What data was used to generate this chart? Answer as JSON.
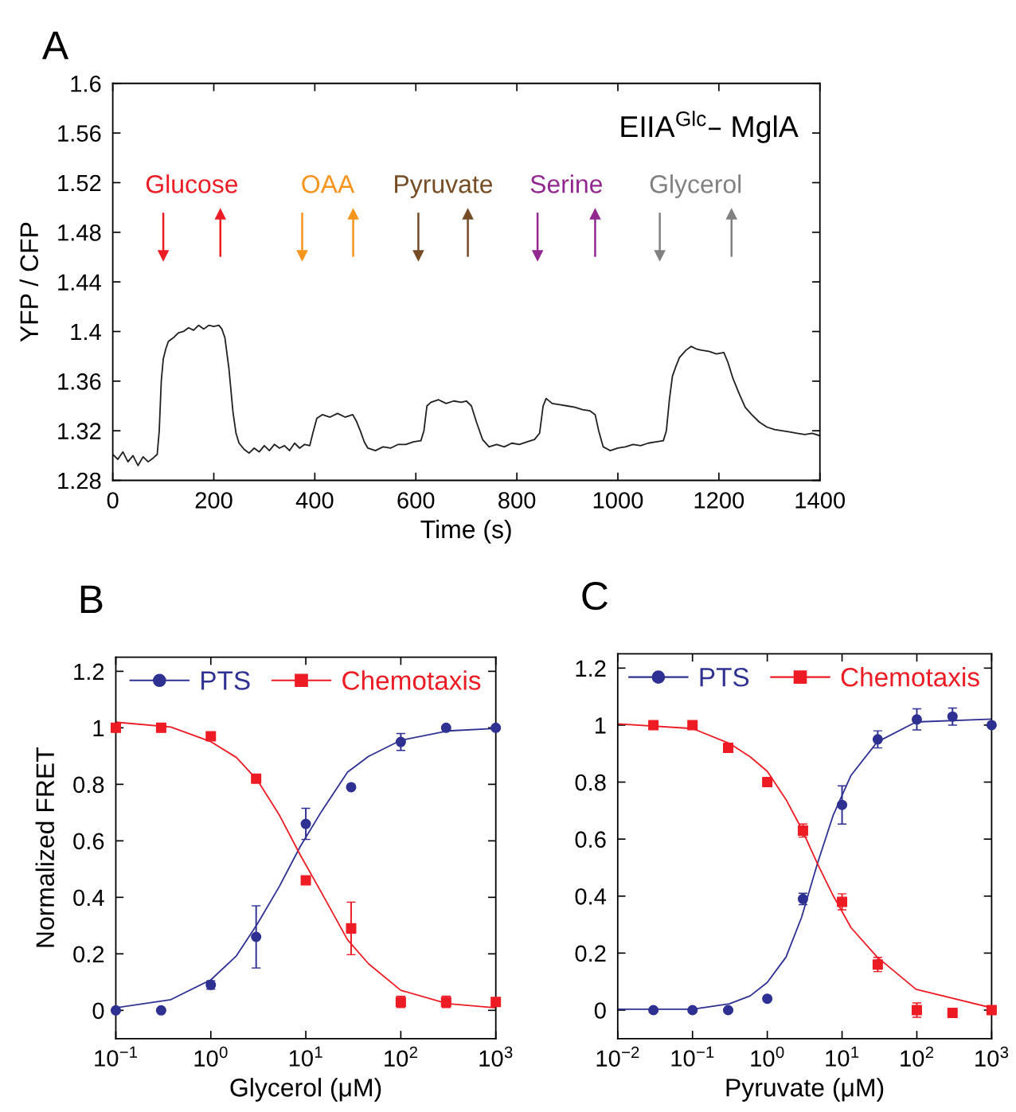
{
  "chart_data": [
    {
      "type": "line",
      "title": "A",
      "xlabel": "Time (s)",
      "ylabel": "YFP / CFP",
      "xlim": [
        0,
        1400
      ],
      "xticks": [
        0,
        200,
        400,
        600,
        800,
        1000,
        1200,
        1400
      ],
      "ylim": [
        1.28,
        1.6
      ],
      "yticks": [
        1.28,
        1.32,
        1.36,
        1.4,
        1.44,
        1.48,
        1.52,
        1.56,
        1.6
      ],
      "grid": false,
      "legend": false,
      "annotations": [
        "EIIA$^{Glc}$– MglA"
      ],
      "series": [
        {
          "color": "#231f20",
          "x": [
            0,
            10,
            20,
            30,
            40,
            50,
            60,
            70,
            80,
            88,
            92,
            96,
            100,
            105,
            110,
            120,
            130,
            140,
            150,
            160,
            170,
            180,
            190,
            200,
            210,
            216,
            222,
            230,
            238,
            244,
            250,
            260,
            270,
            280,
            290,
            300,
            310,
            320,
            330,
            340,
            350,
            360,
            370,
            380,
            390,
            396,
            404,
            415,
            430,
            445,
            460,
            475,
            482,
            490,
            498,
            505,
            520,
            535,
            550,
            565,
            580,
            595,
            610,
            616,
            622,
            630,
            645,
            660,
            675,
            690,
            700,
            710,
            720,
            732,
            745,
            760,
            775,
            790,
            805,
            820,
            835,
            845,
            852,
            858,
            870,
            885,
            900,
            915,
            930,
            945,
            955,
            962,
            971,
            985,
            1000,
            1015,
            1030,
            1045,
            1060,
            1075,
            1090,
            1096,
            1102,
            1108,
            1115,
            1122,
            1135,
            1145,
            1155,
            1165,
            1180,
            1195,
            1210,
            1218,
            1228,
            1240,
            1252,
            1265,
            1280,
            1295,
            1310,
            1325,
            1340,
            1355,
            1370,
            1385,
            1400
          ],
          "values": [
            1.301,
            1.297,
            1.303,
            1.295,
            1.3,
            1.292,
            1.299,
            1.295,
            1.298,
            1.301,
            1.32,
            1.36,
            1.378,
            1.386,
            1.392,
            1.395,
            1.399,
            1.4,
            1.403,
            1.401,
            1.405,
            1.402,
            1.405,
            1.404,
            1.405,
            1.402,
            1.395,
            1.37,
            1.335,
            1.318,
            1.31,
            1.305,
            1.302,
            1.306,
            1.303,
            1.308,
            1.304,
            1.309,
            1.306,
            1.308,
            1.304,
            1.31,
            1.306,
            1.309,
            1.308,
            1.318,
            1.33,
            1.333,
            1.331,
            1.334,
            1.331,
            1.333,
            1.328,
            1.32,
            1.311,
            1.306,
            1.304,
            1.307,
            1.306,
            1.309,
            1.309,
            1.311,
            1.312,
            1.32,
            1.34,
            1.343,
            1.345,
            1.342,
            1.344,
            1.343,
            1.344,
            1.34,
            1.327,
            1.313,
            1.307,
            1.309,
            1.307,
            1.31,
            1.309,
            1.311,
            1.313,
            1.318,
            1.34,
            1.346,
            1.342,
            1.341,
            1.34,
            1.339,
            1.337,
            1.336,
            1.333,
            1.32,
            1.307,
            1.304,
            1.306,
            1.307,
            1.309,
            1.308,
            1.31,
            1.311,
            1.312,
            1.32,
            1.345,
            1.364,
            1.372,
            1.379,
            1.385,
            1.388,
            1.386,
            1.385,
            1.384,
            1.382,
            1.383,
            1.375,
            1.362,
            1.35,
            1.339,
            1.333,
            1.327,
            1.323,
            1.321,
            1.32,
            1.319,
            1.318,
            1.317,
            1.318,
            1.316
          ]
        },
        {
          "type": "scatter",
          "marker": "triangle",
          "name": "Glucose",
          "color": "#ed1c24",
          "x": [
            100,
            213
          ],
          "values": [
            1.461,
            1.495
          ]
        },
        {
          "type": "scatter",
          "marker": "triangle",
          "name": "OAA",
          "color": "#f7941d",
          "x": [
            375,
            476
          ],
          "values": [
            1.461,
            1.495
          ]
        },
        {
          "type": "scatter",
          "marker": "triangle",
          "name": "Pyruvate",
          "color": "#754c24",
          "x": [
            605,
            703
          ],
          "values": [
            1.461,
            1.495
          ]
        },
        {
          "type": "scatter",
          "marker": "triangle",
          "name": "Serine",
          "color": "#92278f",
          "x": [
            841,
            955
          ],
          "values": [
            1.461,
            1.495
          ]
        },
        {
          "type": "scatter",
          "marker": "triangle",
          "name": "Glycerol",
          "color": "#808080",
          "x": [
            1083,
            1225
          ],
          "values": [
            1.461,
            1.495
          ]
        }
      ]
    },
    {
      "type": "scatter",
      "title": "B",
      "xlabel": "Glycerol (μM)",
      "ylabel": "Normalized FRET",
      "log": "x",
      "xlim": [
        0.1,
        1000
      ],
      "xticks": [
        {
          "value": 0.1,
          "label": "10$^{−1}$"
        },
        {
          "value": 1,
          "label": "10$^{0}$"
        },
        {
          "value": 10,
          "label": "10$^{1}$"
        },
        {
          "value": 100,
          "label": "10$^{2}$"
        },
        {
          "value": 1000,
          "label": "10$^{3}$"
        }
      ],
      "ylim": [
        -0.1,
        1.25
      ],
      "yticks": [
        0,
        0.2,
        0.4,
        0.6,
        0.8,
        1,
        1.2
      ],
      "grid": false,
      "legend": "top",
      "series": [
        {
          "name": "PTS",
          "color": "#2e3192",
          "marker": "circle",
          "x": [
            0.1,
            0.3,
            1,
            3,
            10,
            30,
            100,
            300,
            1000
          ],
          "values": [
            0.0,
            0.0,
            0.09,
            0.26,
            0.66,
            0.79,
            0.95,
            1.0,
            1.0
          ],
          "errors": [
            null,
            null,
            0.015,
            0.11,
            0.055,
            null,
            0.03,
            null,
            null
          ]
        },
        {
          "name": "Chemotaxis",
          "color": "#ed1c24",
          "marker": "square",
          "x": [
            0.1,
            0.3,
            1,
            3,
            10,
            30,
            100,
            300,
            1000
          ],
          "values": [
            1.0,
            1.0,
            0.97,
            0.82,
            0.46,
            0.29,
            0.03,
            0.03,
            0.03
          ],
          "errors": [
            null,
            null,
            null,
            null,
            null,
            0.093,
            0.02,
            0.02,
            null
          ]
        },
        {
          "type": "line",
          "color": "#2e3192",
          "x": [
            0.1,
            0.38,
            1,
            1.86,
            3.09,
            5.25,
            8.71,
            14.5,
            27.5,
            45.7,
            100,
            309,
            1000
          ],
          "values": [
            0.009,
            0.038,
            0.108,
            0.193,
            0.306,
            0.438,
            0.579,
            0.702,
            0.843,
            0.899,
            0.956,
            0.989,
            0.998
          ]
        },
        {
          "type": "line",
          "color": "#ed1c24",
          "x": [
            0.1,
            0.38,
            1,
            1.86,
            3.09,
            5.25,
            8.71,
            14.5,
            27.5,
            45.7,
            100,
            309,
            1000
          ],
          "values": [
            1.02,
            1.003,
            0.951,
            0.895,
            0.815,
            0.692,
            0.551,
            0.419,
            0.25,
            0.165,
            0.071,
            0.024,
            0.009
          ]
        }
      ]
    },
    {
      "type": "scatter",
      "title": "C",
      "xlabel": "Pyruvate (μM)",
      "log": "x",
      "xlim": [
        0.01,
        1000
      ],
      "xticks": [
        {
          "value": 0.01,
          "label": "10$^{−2}$"
        },
        {
          "value": 0.1,
          "label": "10$^{−1}$"
        },
        {
          "value": 1,
          "label": "10$^{0}$"
        },
        {
          "value": 10,
          "label": "10$^{1}$"
        },
        {
          "value": 100,
          "label": "10$^{2}$"
        },
        {
          "value": 1000,
          "label": "10$^{3}$"
        }
      ],
      "ylim": [
        -0.1,
        1.25
      ],
      "yticks": [
        0,
        0.2,
        0.4,
        0.6,
        0.8,
        1,
        1.2
      ],
      "grid": false,
      "legend": "top",
      "series": [
        {
          "name": "PTS",
          "color": "#2e3192",
          "marker": "circle",
          "x": [
            0.03,
            0.1,
            0.3,
            1,
            3,
            10,
            30,
            100,
            300,
            1000
          ],
          "values": [
            0.0,
            0.0,
            0.0,
            0.04,
            0.39,
            0.72,
            0.95,
            1.02,
            1.03,
            1.0
          ],
          "errors": [
            null,
            null,
            null,
            null,
            0.02,
            0.067,
            0.03,
            0.037,
            0.03,
            null
          ]
        },
        {
          "name": "Chemotaxis",
          "color": "#ed1c24",
          "marker": "square",
          "x": [
            0.03,
            0.1,
            0.3,
            1,
            3,
            10,
            30,
            100,
            300,
            1000
          ],
          "values": [
            1.0,
            1.0,
            0.92,
            0.8,
            0.63,
            0.38,
            0.16,
            0.0,
            -0.01,
            0.0
          ],
          "errors": [
            null,
            null,
            null,
            null,
            0.023,
            0.028,
            0.025,
            0.025,
            null,
            null
          ]
        },
        {
          "type": "line",
          "color": "#2e3192",
          "x": [
            0.01,
            0.1,
            0.31,
            0.59,
            1,
            1.78,
            2.88,
            4.68,
            7.59,
            13.2,
            29.5,
            97.7,
            1000
          ],
          "values": [
            0.003,
            0.003,
            0.022,
            0.05,
            0.097,
            0.186,
            0.326,
            0.514,
            0.683,
            0.824,
            0.941,
            1.011,
            1.021
          ]
        },
        {
          "type": "line",
          "color": "#ed1c24",
          "x": [
            0.01,
            0.1,
            0.31,
            0.59,
            1,
            1.78,
            2.88,
            4.68,
            7.59,
            13.2,
            29.5,
            97.7,
            1000
          ],
          "values": [
            1.004,
            0.988,
            0.936,
            0.889,
            0.838,
            0.739,
            0.636,
            0.514,
            0.402,
            0.289,
            0.186,
            0.073,
            0.008
          ]
        }
      ]
    }
  ]
}
